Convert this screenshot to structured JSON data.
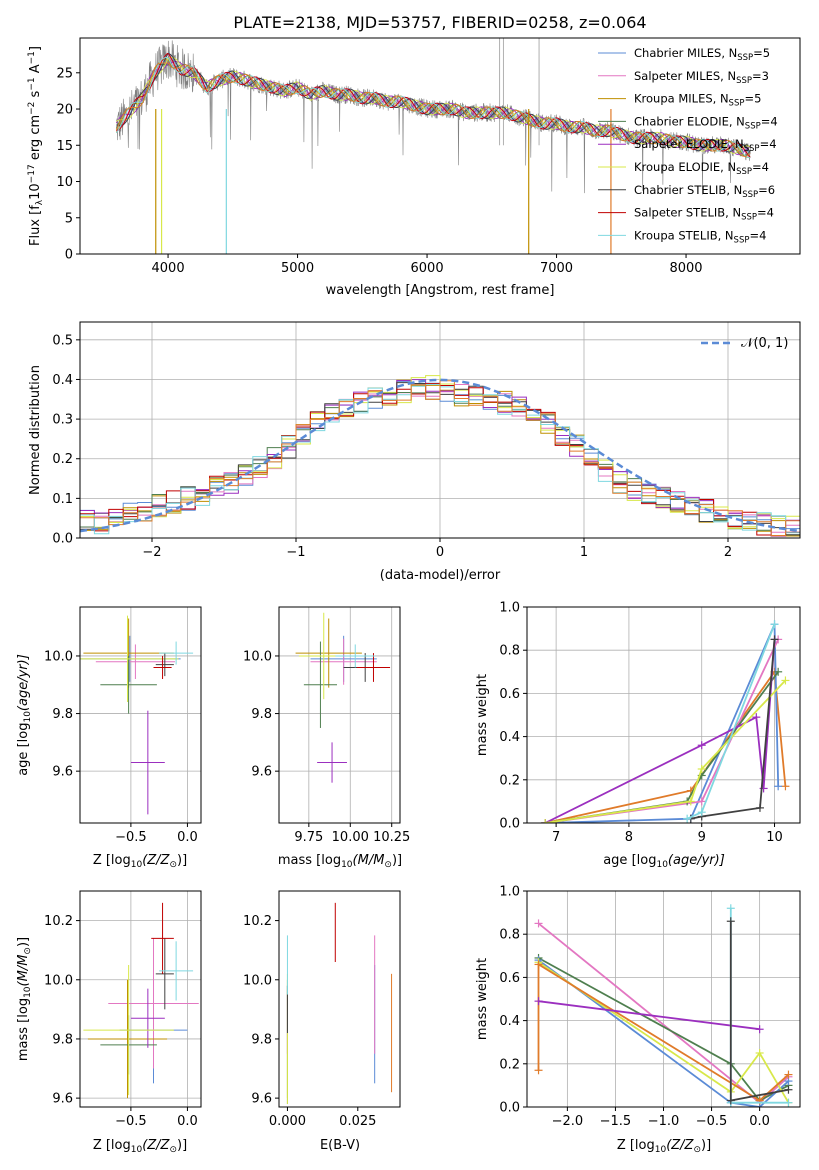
{
  "colors": {
    "chabrier_miles": "#5b8bd6",
    "salpeter_miles": "#e377c2",
    "kroupa_miles": "#bf8f00",
    "chabrier_elodie": "#4f7f4f",
    "salpeter_elodie": "#9b2fbf",
    "kroupa_elodie": "#d8e84a",
    "chabrier_stelib": "#404040",
    "salpeter_stelib": "#c00000",
    "kroupa_stelib": "#7fd8e0",
    "data": "#808080",
    "orange": "#e07b2a",
    "normal": "#5b8bd6"
  },
  "chart_data": [
    {
      "id": "spectrum",
      "type": "line",
      "title": "PLATE=2138, MJD=53757, FIBERID=0258, z=0.064",
      "xlabel": "wavelength [Angstrom, rest frame]",
      "ylabel_main": "Flux [f",
      "ylabel_sub1": "λ",
      "ylabel_mid": "10",
      "ylabel_sup1": "−17",
      "ylabel_rest": " erg cm",
      "ylabel_sup2": "−2",
      "ylabel_rest2": " s",
      "ylabel_sup3": "−1",
      "ylabel_rest3": " A",
      "ylabel_sup4": "−1",
      "ylabel_end": "]",
      "xlim": [
        3320,
        8880
      ],
      "ylim": [
        0,
        29.8
      ],
      "xticks": [
        "4000",
        "5000",
        "6000",
        "7000",
        "8000"
      ],
      "yticks": [
        "0",
        "5",
        "10",
        "15",
        "20",
        "25"
      ],
      "legend_position": "top-right",
      "legend": [
        {
          "name": "Chabrier MILES, N",
          "sub": "SSP",
          "eq": "=5"
        },
        {
          "name": "Salpeter MILES, N",
          "sub": "SSP",
          "eq": "=3"
        },
        {
          "name": "Kroupa MILES, N",
          "sub": "SSP",
          "eq": "=5"
        },
        {
          "name": "Chabrier ELODIE, N",
          "sub": "SSP",
          "eq": "=4"
        },
        {
          "name": "Salpeter ELODIE, N",
          "sub": "SSP",
          "eq": "=4"
        },
        {
          "name": "Kroupa ELODIE, N",
          "sub": "SSP",
          "eq": "=4"
        },
        {
          "name": "Chabrier STELIB, N",
          "sub": "SSP",
          "eq": "=6"
        },
        {
          "name": "Salpeter STELIB, N",
          "sub": "SSP",
          "eq": "=4"
        },
        {
          "name": "Kroupa STELIB, N",
          "sub": "SSP",
          "eq": "=4"
        }
      ],
      "continuum": [
        [
          3600,
          17.5
        ],
        [
          3700,
          19.5
        ],
        [
          3800,
          21.5
        ],
        [
          3900,
          25.0
        ],
        [
          4000,
          27.0
        ],
        [
          4100,
          25.5
        ],
        [
          4200,
          25.0
        ],
        [
          4300,
          23.0
        ],
        [
          4400,
          24.0
        ],
        [
          4500,
          24.5
        ],
        [
          4600,
          24.0
        ],
        [
          4700,
          23.5
        ],
        [
          4800,
          23.0
        ],
        [
          4900,
          22.5
        ],
        [
          5000,
          23.0
        ],
        [
          5100,
          22.0
        ],
        [
          5200,
          22.5
        ],
        [
          5300,
          22.0
        ],
        [
          5400,
          22.0
        ],
        [
          5500,
          21.5
        ],
        [
          5600,
          21.5
        ],
        [
          5700,
          21.0
        ],
        [
          5800,
          21.0
        ],
        [
          5900,
          20.5
        ],
        [
          6000,
          20.0
        ],
        [
          6100,
          20.0
        ],
        [
          6200,
          20.0
        ],
        [
          6300,
          19.5
        ],
        [
          6400,
          19.5
        ],
        [
          6500,
          19.5
        ],
        [
          6600,
          19.5
        ],
        [
          6700,
          19.0
        ],
        [
          6800,
          18.5
        ],
        [
          6900,
          18.0
        ],
        [
          7000,
          18.0
        ],
        [
          7100,
          17.5
        ],
        [
          7200,
          17.5
        ],
        [
          7300,
          17.0
        ],
        [
          7400,
          17.0
        ],
        [
          7500,
          16.5
        ],
        [
          7600,
          16.0
        ],
        [
          7700,
          16.0
        ],
        [
          7800,
          16.0
        ],
        [
          7900,
          15.5
        ],
        [
          8000,
          15.5
        ],
        [
          8100,
          15.0
        ],
        [
          8200,
          15.0
        ],
        [
          8300,
          15.0
        ],
        [
          8400,
          14.5
        ],
        [
          8500,
          14.0
        ]
      ]
    },
    {
      "id": "residuals",
      "type": "histogram",
      "xlabel": "(data-model)/error",
      "ylabel": "Normed distribution",
      "xlim": [
        -2.5,
        2.5
      ],
      "ylim": [
        0,
        0.545
      ],
      "xticks": [
        "−2",
        "−1",
        "0",
        "1",
        "2"
      ],
      "yticks": [
        "0.0",
        "0.1",
        "0.2",
        "0.3",
        "0.4",
        "0.5"
      ],
      "legend": [
        "𝒩(0, 1)"
      ],
      "legend_position": "top-right",
      "bins_start": -2.5,
      "bin_width": 0.1,
      "envelope": [
        0.04,
        0.04,
        0.05,
        0.06,
        0.07,
        0.08,
        0.09,
        0.1,
        0.11,
        0.13,
        0.14,
        0.16,
        0.18,
        0.2,
        0.23,
        0.26,
        0.29,
        0.31,
        0.33,
        0.34,
        0.35,
        0.36,
        0.37,
        0.38,
        0.38,
        0.37,
        0.36,
        0.36,
        0.35,
        0.34,
        0.33,
        0.31,
        0.29,
        0.26,
        0.23,
        0.2,
        0.17,
        0.14,
        0.12,
        0.11,
        0.1,
        0.09,
        0.08,
        0.07,
        0.06,
        0.05,
        0.04,
        0.035,
        0.03,
        0.025
      ]
    },
    {
      "id": "age-vs-Z",
      "type": "scatter",
      "xlabel": "Z [log",
      "xlabel_sub": "10",
      "xlabel_end": "(Z/Z",
      "xlabel_sun": "⊙",
      "xlabel_close": ")]",
      "ylabel": "age  [log",
      "ylabel_sub": "10",
      "ylabel_end": "(age/yr)]",
      "xlim": [
        -0.95,
        0.12
      ],
      "ylim": [
        9.42,
        10.17
      ],
      "xticks": [
        "−0.5",
        "0.0"
      ],
      "yticks": [
        "9.6",
        "9.8",
        "10.0"
      ],
      "points": [
        {
          "model": "chabrier_miles",
          "x": -0.51,
          "y": 9.99,
          "xerr": 0.45,
          "yerr": 0.08
        },
        {
          "model": "salpeter_miles",
          "x": -0.46,
          "y": 9.98,
          "xerr": 0.35,
          "yerr": 0.06
        },
        {
          "model": "kroupa_miles",
          "x": -0.52,
          "y": 10.01,
          "xerr": 0.4,
          "yerr": 0.12
        },
        {
          "model": "chabrier_elodie",
          "x": -0.52,
          "y": 9.9,
          "xerr": 0.25,
          "yerr": 0.1
        },
        {
          "model": "salpeter_elodie",
          "x": -0.35,
          "y": 9.63,
          "xerr": 0.15,
          "yerr": 0.18
        },
        {
          "model": "kroupa_elodie",
          "x": -0.53,
          "y": 9.99,
          "xerr": 0.45,
          "yerr": 0.15
        },
        {
          "model": "chabrier_stelib",
          "x": -0.2,
          "y": 9.97,
          "xerr": 0.08,
          "yerr": 0.04
        },
        {
          "model": "salpeter_stelib",
          "x": -0.22,
          "y": 9.96,
          "xerr": 0.08,
          "yerr": 0.04
        },
        {
          "model": "kroupa_stelib",
          "x": -0.1,
          "y": 10.01,
          "xerr": 0.15,
          "yerr": 0.04
        }
      ]
    },
    {
      "id": "age-vs-mass",
      "type": "scatter",
      "xlabel": "mass [log",
      "xlabel_sub": "10",
      "xlabel_end": "(M/M",
      "xlabel_sun": "⊙",
      "xlabel_close": ")]",
      "xlim": [
        9.57,
        10.3
      ],
      "ylim": [
        9.42,
        10.17
      ],
      "xticks": [
        "9.75",
        "10.00",
        "10.25"
      ],
      "yticks": [
        "9.6",
        "9.8",
        "10.0"
      ],
      "points": [
        {
          "model": "chabrier_miles",
          "x": 9.96,
          "y": 9.99,
          "xerr": 0.2,
          "yerr": 0.08
        },
        {
          "model": "salpeter_miles",
          "x": 9.96,
          "y": 9.98,
          "xerr": 0.2,
          "yerr": 0.08
        },
        {
          "model": "kroupa_miles",
          "x": 9.87,
          "y": 10.01,
          "xerr": 0.2,
          "yerr": 0.12
        },
        {
          "model": "chabrier_elodie",
          "x": 9.82,
          "y": 9.9,
          "xerr": 0.1,
          "yerr": 0.15
        },
        {
          "model": "salpeter_elodie",
          "x": 9.89,
          "y": 9.63,
          "xerr": 0.09,
          "yerr": 0.07
        },
        {
          "model": "kroupa_elodie",
          "x": 9.84,
          "y": 10.0,
          "xerr": 0.15,
          "yerr": 0.15
        },
        {
          "model": "chabrier_stelib",
          "x": 10.09,
          "y": 9.96,
          "xerr": 0.13,
          "yerr": 0.05
        },
        {
          "model": "salpeter_stelib",
          "x": 10.14,
          "y": 9.96,
          "xerr": 0.1,
          "yerr": 0.05
        },
        {
          "model": "kroupa_stelib",
          "x": 10.03,
          "y": 10.0,
          "xerr": 0.12,
          "yerr": 0.04
        }
      ]
    },
    {
      "id": "weight-vs-age",
      "type": "line",
      "xlabel": "age  [log",
      "xlabel_sub": "10",
      "xlabel_end": "(age/yr)]",
      "ylabel": "mass weight",
      "xlim": [
        6.6,
        10.35
      ],
      "ylim": [
        0,
        1.0
      ],
      "xticks": [
        "7",
        "8",
        "9",
        "10"
      ],
      "yticks": [
        "0.0",
        "0.2",
        "0.4",
        "0.6",
        "0.8",
        "1.0"
      ],
      "series": [
        {
          "model": "orange",
          "x": [
            6.85,
            8.85,
            10.0,
            10.15
          ],
          "y": [
            0.0,
            0.15,
            0.7,
            0.17
          ]
        },
        {
          "model": "chabrier_miles",
          "x": [
            6.85,
            8.85,
            10.0,
            10.05
          ],
          "y": [
            0.0,
            0.02,
            0.92,
            0.17
          ]
        },
        {
          "model": "salpeter_miles",
          "x": [
            6.85,
            9.0,
            10.05
          ],
          "y": [
            0.0,
            0.1,
            0.85
          ]
        },
        {
          "model": "chabrier_elodie",
          "x": [
            6.85,
            8.8,
            9.0,
            10.05
          ],
          "y": [
            0.0,
            0.1,
            0.22,
            0.7
          ]
        },
        {
          "model": "salpeter_elodie",
          "x": [
            6.85,
            9.0,
            9.75,
            9.85,
            10.0
          ],
          "y": [
            0.0,
            0.36,
            0.49,
            0.16,
            0.85
          ]
        },
        {
          "model": "kroupa_elodie",
          "x": [
            6.85,
            8.85,
            9.0,
            10.15
          ],
          "y": [
            0.0,
            0.1,
            0.25,
            0.66
          ]
        },
        {
          "model": "chabrier_stelib",
          "x": [
            8.85,
            9.0,
            9.8,
            10.0
          ],
          "y": [
            0.02,
            0.03,
            0.07,
            0.85
          ]
        },
        {
          "model": "kroupa_stelib",
          "x": [
            8.8,
            9.0,
            10.0
          ],
          "y": [
            0.02,
            0.05,
            0.92
          ]
        }
      ]
    },
    {
      "id": "mass-vs-Z",
      "type": "scatter",
      "xlabel": "Z [log",
      "xlabel_sub": "10",
      "xlabel_end": "(Z/Z",
      "xlabel_sun": "⊙",
      "xlabel_close": ")]",
      "ylabel": "mass [log",
      "ylabel_sub": "10",
      "ylabel_end": "(M/M",
      "ylabel_sun": "⊙",
      "ylabel_close": ")]",
      "xlim": [
        -0.95,
        0.12
      ],
      "ylim": [
        9.57,
        10.3
      ],
      "xticks": [
        "−0.5",
        "0.0"
      ],
      "yticks": [
        "9.6",
        "9.8",
        "10.0",
        "10.2"
      ],
      "points": [
        {
          "model": "chabrier_miles",
          "x": -0.3,
          "y": 9.83,
          "xerr": 0.3,
          "yerr": 0.18
        },
        {
          "model": "salpeter_miles",
          "x": -0.3,
          "y": 9.92,
          "xerr": 0.4,
          "yerr": 0.22
        },
        {
          "model": "kroupa_miles",
          "x": -0.53,
          "y": 9.8,
          "xerr": 0.35,
          "yerr": 0.2
        },
        {
          "model": "chabrier_elodie",
          "x": -0.52,
          "y": 9.78,
          "xerr": 0.25,
          "yerr": 0.1
        },
        {
          "model": "salpeter_elodie",
          "x": -0.35,
          "y": 9.87,
          "xerr": 0.15,
          "yerr": 0.1
        },
        {
          "model": "kroupa_elodie",
          "x": -0.52,
          "y": 9.83,
          "xerr": 0.4,
          "yerr": 0.22
        },
        {
          "model": "chabrier_stelib",
          "x": -0.2,
          "y": 10.02,
          "xerr": 0.08,
          "yerr": 0.12
        },
        {
          "model": "salpeter_stelib",
          "x": -0.22,
          "y": 10.14,
          "xerr": 0.1,
          "yerr": 0.12
        },
        {
          "model": "kroupa_stelib",
          "x": -0.1,
          "y": 10.03,
          "xerr": 0.15,
          "yerr": 0.1
        }
      ]
    },
    {
      "id": "mass-vs-ebv",
      "type": "scatter",
      "xlabel": "E(B-V)",
      "xlim": [
        -0.003,
        0.04
      ],
      "ylim": [
        9.57,
        10.3
      ],
      "xticks": [
        "0.000",
        "0.025"
      ],
      "yticks": [
        "9.6",
        "9.8",
        "10.0",
        "10.2"
      ],
      "points": [
        {
          "model": "chabrier_miles",
          "x": 0.031,
          "y": 9.85,
          "xerr": 0,
          "yerr": 0.2
        },
        {
          "model": "salpeter_miles",
          "x": 0.031,
          "y": 9.95,
          "xerr": 0,
          "yerr": 0.2
        },
        {
          "model": "kroupa_miles",
          "x": 0.0,
          "y": 9.8,
          "xerr": 0,
          "yerr": 0.2
        },
        {
          "model": "chabrier_elodie",
          "x": 0.0,
          "y": 9.78,
          "xerr": 0,
          "yerr": 0.2
        },
        {
          "model": "salpeter_elodie",
          "x": 0.0,
          "y": 9.85,
          "xerr": 0,
          "yerr": 0.1
        },
        {
          "model": "kroupa_elodie",
          "x": 0.0,
          "y": 9.8,
          "xerr": 0,
          "yerr": 0.22
        },
        {
          "model": "chabrier_stelib",
          "x": 0.0,
          "y": 9.9,
          "xerr": 0,
          "yerr": 0.08
        },
        {
          "model": "salpeter_stelib",
          "x": 0.017,
          "y": 10.16,
          "xerr": 0,
          "yerr": 0.1
        },
        {
          "model": "kroupa_stelib",
          "x": 0.0,
          "y": 10.05,
          "xerr": 0,
          "yerr": 0.1
        },
        {
          "model": "orange",
          "x": 0.037,
          "y": 9.82,
          "xerr": 0,
          "yerr": 0.2
        }
      ]
    },
    {
      "id": "weight-vs-Z",
      "type": "line",
      "xlabel": "Z [log",
      "xlabel_sub": "10",
      "xlabel_end": "(Z/Z",
      "xlabel_sun": "⊙",
      "xlabel_close": ")]",
      "ylabel": "mass weight",
      "xlim": [
        -2.42,
        0.42
      ],
      "ylim": [
        0,
        1.0
      ],
      "xticks": [
        "−2.0",
        "−1.5",
        "−1.0",
        "−0.5",
        "0.0"
      ],
      "yticks": [
        "0.0",
        "0.2",
        "0.4",
        "0.6",
        "0.8",
        "1.0"
      ],
      "series": [
        {
          "model": "salpeter_miles",
          "x": [
            -2.3,
            0.0,
            0.3
          ],
          "y": [
            0.85,
            0.02,
            0.14
          ]
        },
        {
          "model": "chabrier_elodie",
          "x": [
            -2.3,
            -0.3,
            0.0,
            0.3
          ],
          "y": [
            0.69,
            0.2,
            0.03,
            0.1
          ]
        },
        {
          "model": "chabrier_miles",
          "x": [
            -2.3,
            -0.3,
            0.0,
            0.3
          ],
          "y": [
            0.68,
            0.02,
            0.0,
            0.12
          ]
        },
        {
          "model": "kroupa_elodie",
          "x": [
            -2.3,
            -0.3,
            0.0,
            0.3
          ],
          "y": [
            0.67,
            0.07,
            0.25,
            0.02
          ]
        },
        {
          "model": "orange",
          "x": [
            -2.3,
            -2.3,
            0.0,
            0.3
          ],
          "y": [
            0.17,
            0.66,
            0.03,
            0.15
          ]
        },
        {
          "model": "salpeter_elodie",
          "x": [
            -2.3,
            0.0
          ],
          "y": [
            0.49,
            0.36
          ]
        },
        {
          "model": "kroupa_stelib",
          "x": [
            -0.3,
            -0.3,
            0.3
          ],
          "y": [
            0.92,
            0.02,
            0.02
          ]
        },
        {
          "model": "chabrier_stelib",
          "x": [
            -0.3,
            -0.3,
            0.3
          ],
          "y": [
            0.86,
            0.03,
            0.08
          ]
        }
      ]
    }
  ]
}
